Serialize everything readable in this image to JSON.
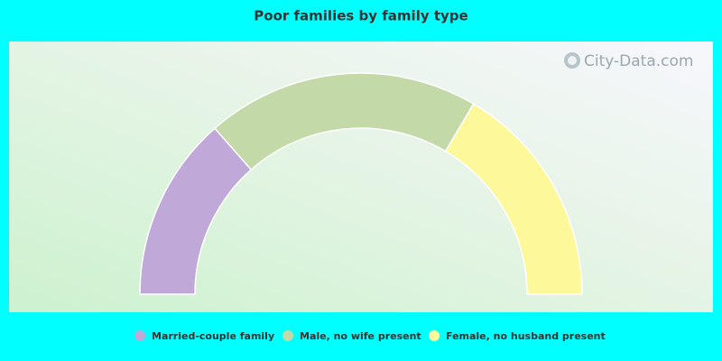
{
  "chart_data": {
    "type": "semi-donut",
    "title": "Poor families by family type",
    "categories": [
      "Married-couple family",
      "Male, no wife present",
      "Female, no husband present"
    ],
    "values": [
      27,
      40,
      33
    ],
    "colors": [
      "#c0a8d8",
      "#c4d9a8",
      "#fdf99a"
    ],
    "watermark": "City-Data.com"
  }
}
